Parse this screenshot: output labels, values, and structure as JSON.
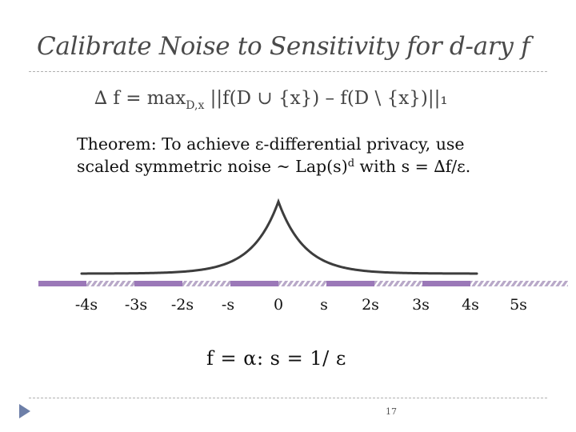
{
  "slide": {
    "title": "Calibrate Noise to Sensitivity for d-ary f",
    "formula": {
      "main": "∆ f = max",
      "subscript": "D,x",
      "rest": " ||f(D ∪ {x}) – f(D \\ {x})||₁"
    },
    "theorem": {
      "line1": "Theorem: To achieve ε-differential privacy, use",
      "line2_pre": "scaled symmetric noise ~ Lap(s)",
      "line2_sup": "d",
      "line2_post": " with s = ∆f/ε."
    },
    "axis_ticks": [
      "-4s",
      "-3s",
      "-2s",
      "-s",
      "0",
      "s",
      "2s",
      "3s",
      "4s",
      "5s"
    ],
    "bottom_formula": "f = α: s = 1/ ε",
    "page_number": "17",
    "colors": {
      "title": "#4a4a4a",
      "curve": "#3d3d3d",
      "axis_dark": "#9b78b8",
      "axis_hatch": "#b9a9c9",
      "bullet": "#6d7fa8"
    }
  }
}
